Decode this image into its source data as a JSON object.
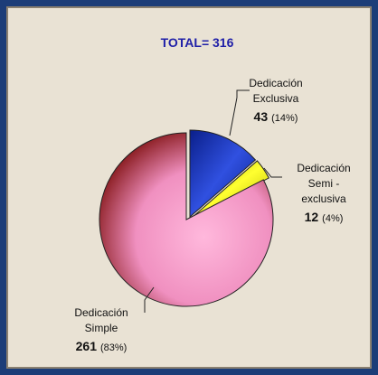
{
  "chart_data": {
    "type": "pie",
    "title": "TOTAL= 316",
    "categories": [
      [
        "Dedicación",
        "Exclusiva"
      ],
      [
        "Dedicación",
        "Semi -",
        "exclusiva"
      ],
      [
        "Dedicación",
        "Simple"
      ]
    ],
    "values": [
      43,
      12,
      261
    ],
    "percent_labels": [
      "(14%)",
      "(4%)",
      "(83%)"
    ],
    "colors": [
      "#1f3fd0",
      "#f0f000",
      "#f59ac8"
    ]
  }
}
